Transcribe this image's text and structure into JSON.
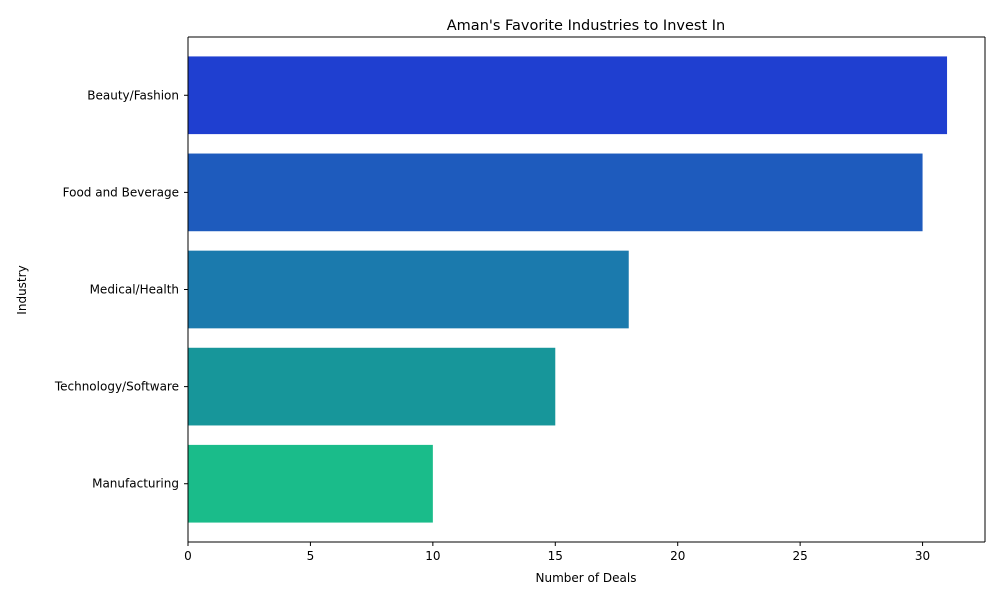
{
  "chart_data": {
    "type": "bar",
    "orientation": "horizontal",
    "title": "Aman's Favorite Industries to Invest In",
    "xlabel": "Number of Deals",
    "ylabel": "Industry",
    "categories": [
      "Beauty/Fashion",
      "Food and Beverage",
      "Medical/Health",
      "Technology/Software",
      "Manufacturing"
    ],
    "values": [
      31,
      30,
      18,
      15,
      10
    ],
    "colors": [
      "#1f3fd0",
      "#1e5bbd",
      "#1b7aad",
      "#17969a",
      "#1abc8a"
    ],
    "xlim": [
      0,
      32.55
    ],
    "xticks": [
      0,
      5,
      10,
      15,
      20,
      25,
      30
    ],
    "grid": false,
    "legend": "none"
  }
}
